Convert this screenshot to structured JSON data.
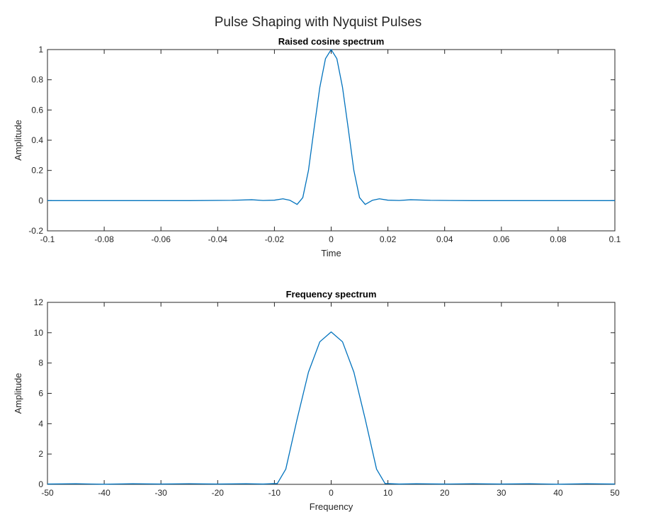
{
  "figure": {
    "suptitle": "Pulse Shaping with Nyquist Pulses",
    "line_color": "#0072BD"
  },
  "chart_data": [
    {
      "type": "line",
      "title": "Raised cosine spectrum",
      "xlabel": "Time",
      "ylabel": "Amplitude",
      "xlim": [
        -0.1,
        0.1
      ],
      "ylim": [
        -0.2,
        1
      ],
      "xticks": [
        -0.1,
        -0.08,
        -0.06,
        -0.04,
        -0.02,
        0,
        0.02,
        0.04,
        0.06,
        0.08,
        0.1
      ],
      "xtick_labels": [
        "-0.1",
        "-0.08",
        "-0.06",
        "-0.04",
        "-0.02",
        "0",
        "0.02",
        "0.04",
        "0.06",
        "0.08",
        "0.1"
      ],
      "yticks": [
        -0.2,
        0,
        0.2,
        0.4,
        0.6,
        0.8,
        1
      ],
      "ytick_labels": [
        "-0.2",
        "0",
        "0.2",
        "0.4",
        "0.6",
        "0.8",
        "1"
      ],
      "grid": false,
      "series": [
        {
          "x": [
            -0.1,
            -0.05,
            -0.035,
            -0.028,
            -0.024,
            -0.02,
            -0.017,
            -0.0145,
            -0.012,
            -0.01,
            -0.008,
            -0.006,
            -0.004,
            -0.002,
            0,
            0.002,
            0.004,
            0.006,
            0.008,
            0.01,
            0.012,
            0.0145,
            0.017,
            0.02,
            0.024,
            0.028,
            0.035,
            0.05,
            0.1
          ],
          "y": [
            0,
            0,
            0.002,
            0.006,
            0.001,
            0.003,
            0.012,
            0.002,
            -0.025,
            0.02,
            0.2,
            0.48,
            0.75,
            0.94,
            1.0,
            0.94,
            0.75,
            0.48,
            0.2,
            0.02,
            -0.025,
            0.002,
            0.012,
            0.003,
            0.001,
            0.006,
            0.002,
            0,
            0
          ]
        }
      ]
    },
    {
      "type": "line",
      "title": "Frequency spectrum",
      "xlabel": "Frequency",
      "ylabel": "Amplitude",
      "xlim": [
        -50,
        50
      ],
      "ylim": [
        0,
        12
      ],
      "xticks": [
        -50,
        -40,
        -30,
        -20,
        -10,
        0,
        10,
        20,
        30,
        40,
        50
      ],
      "xtick_labels": [
        "-50",
        "-40",
        "-30",
        "-20",
        "-10",
        "0",
        "10",
        "20",
        "30",
        "40",
        "50"
      ],
      "yticks": [
        0,
        2,
        4,
        6,
        8,
        10,
        12
      ],
      "ytick_labels": [
        "0",
        "2",
        "4",
        "6",
        "8",
        "10",
        "12"
      ],
      "grid": false,
      "series": [
        {
          "x": [
            -50,
            -45,
            -40,
            -35,
            -30,
            -25,
            -20,
            -15,
            -12,
            -10,
            -9.5,
            -8,
            -6,
            -4,
            -2,
            0,
            2,
            4,
            6,
            8,
            9.5,
            10,
            12,
            15,
            20,
            25,
            30,
            35,
            40,
            45,
            50
          ],
          "y": [
            0.02,
            0.04,
            0.01,
            0.04,
            0.02,
            0.04,
            0.02,
            0.04,
            0.02,
            0.05,
            0.05,
            1.0,
            4.3,
            7.4,
            9.4,
            10.05,
            9.4,
            7.4,
            4.3,
            1.0,
            0.05,
            0.05,
            0.02,
            0.04,
            0.02,
            0.04,
            0.02,
            0.04,
            0.01,
            0.04,
            0.02
          ]
        }
      ]
    }
  ]
}
